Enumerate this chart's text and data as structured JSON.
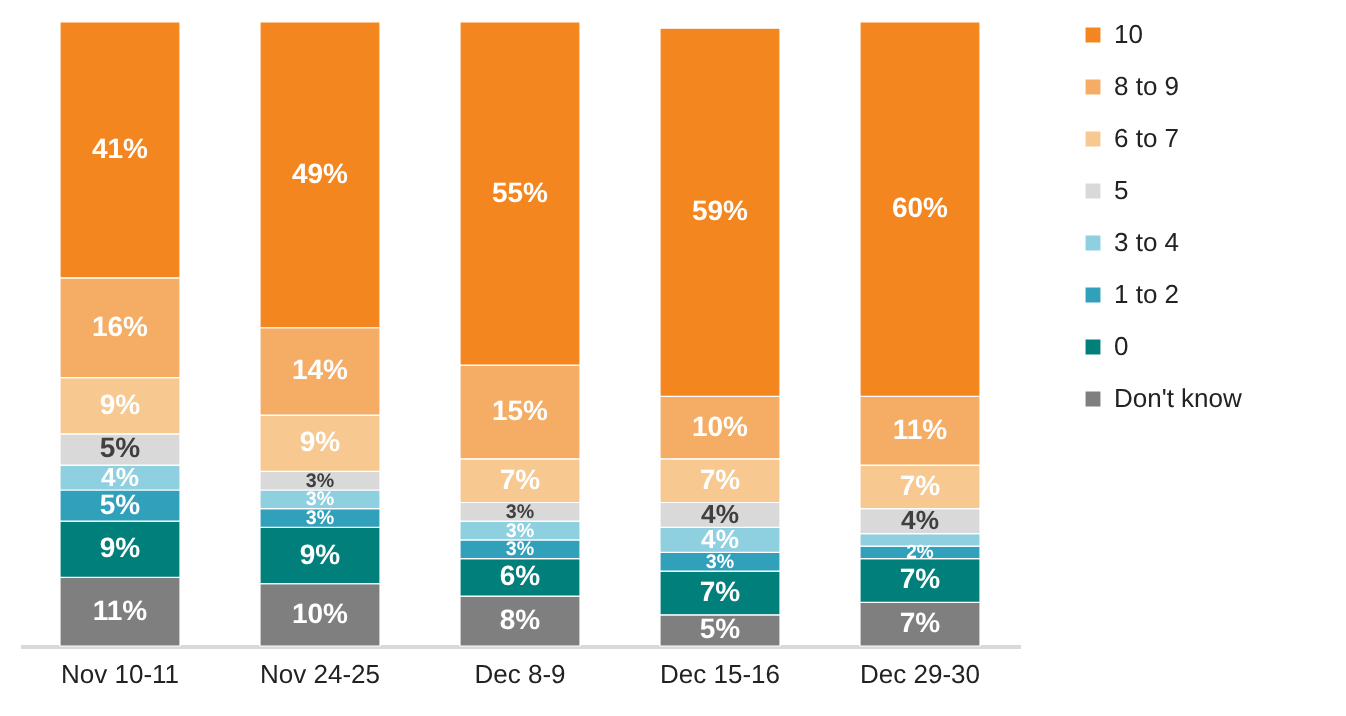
{
  "chart_data": {
    "type": "bar",
    "stacked": true,
    "legend": "right",
    "categories": [
      "Nov 10-11",
      "Nov 24-25",
      "Dec 8-9",
      "Dec 15-16",
      "Dec 29-30"
    ],
    "series": [
      {
        "name": "Don't know",
        "color": "#7f7f7f",
        "values": [
          11,
          10,
          8,
          5,
          7
        ],
        "value_labels": [
          "11%",
          "10%",
          "8%",
          "5%",
          "7%"
        ]
      },
      {
        "name": "0",
        "color": "#007f7b",
        "values": [
          9,
          9,
          6,
          7,
          7
        ],
        "value_labels": [
          "9%",
          "9%",
          "6%",
          "7%",
          "7%"
        ]
      },
      {
        "name": "1 to 2",
        "color": "#31a0bb",
        "values": [
          5,
          3,
          3,
          3,
          2
        ],
        "value_labels": [
          "5%",
          "3%",
          "3%",
          "3%",
          "2%"
        ]
      },
      {
        "name": "3 to 4",
        "color": "#8ecfe0",
        "values": [
          4,
          3,
          3,
          4,
          2
        ],
        "value_labels": [
          "4%",
          "3%",
          "3%",
          "4%",
          null
        ]
      },
      {
        "name": "5",
        "color": "#d9d9d9",
        "values": [
          5,
          3,
          3,
          4,
          4
        ],
        "value_labels": [
          "5%",
          "3%",
          "3%",
          "4%",
          "4%"
        ]
      },
      {
        "name": "6 to 7",
        "color": "#f8c891",
        "values": [
          9,
          9,
          7,
          7,
          7
        ],
        "value_labels": [
          "9%",
          "9%",
          "7%",
          "7%",
          "7%"
        ]
      },
      {
        "name": "8 to 9",
        "color": "#f5ad66",
        "values": [
          16,
          14,
          15,
          10,
          11
        ],
        "value_labels": [
          "16%",
          "14%",
          "15%",
          "10%",
          "11%"
        ]
      },
      {
        "name": "10",
        "color": "#f4861f",
        "values": [
          41,
          49,
          55,
          59,
          60
        ],
        "value_labels": [
          "41%",
          "49%",
          "55%",
          "59%",
          "60%"
        ]
      }
    ]
  }
}
